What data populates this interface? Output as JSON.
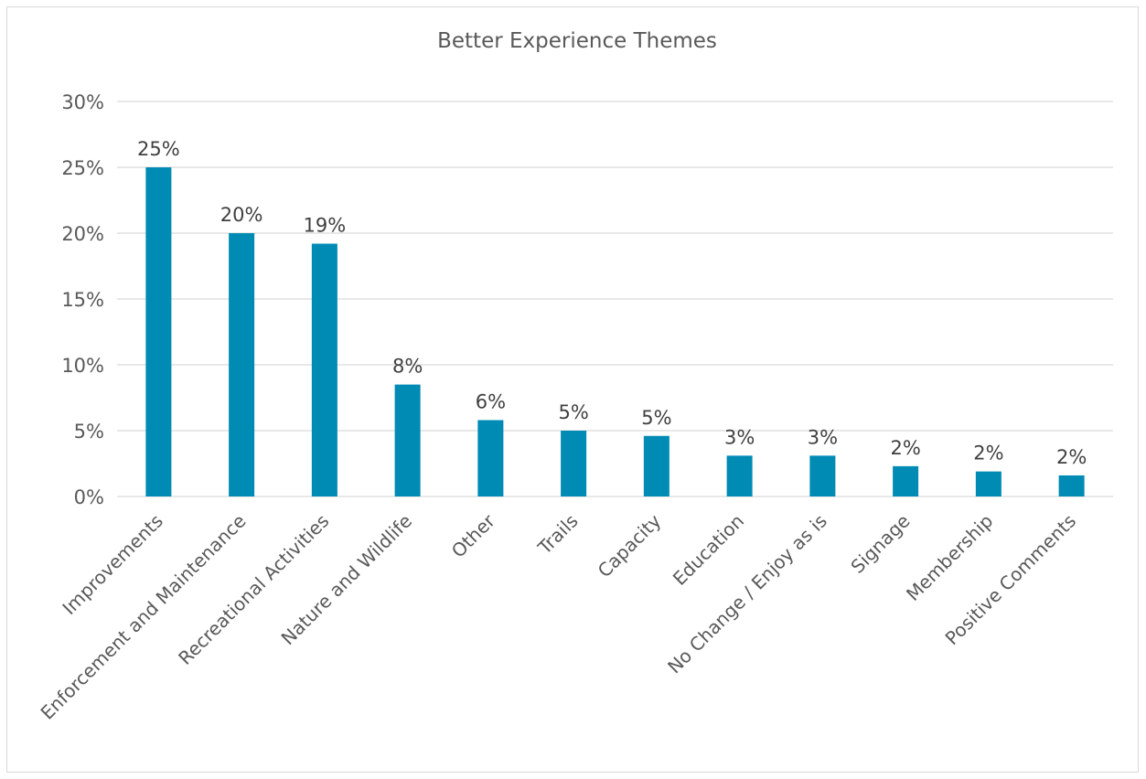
{
  "chart_data": {
    "type": "bar",
    "title": "Better Experience Themes",
    "categories": [
      "Improvements",
      "Enforcement and Maintenance",
      "Recreational Activities",
      "Nature and Wildlife",
      "Other",
      "Trails",
      "Capacity",
      "Education",
      "No Change / Enjoy as is",
      "Signage",
      "Membership",
      "Positive Comments"
    ],
    "values": [
      25,
      20,
      19.2,
      8.5,
      5.8,
      5.0,
      4.6,
      3.1,
      3.1,
      2.3,
      1.9,
      1.6
    ],
    "data_labels": [
      "25%",
      "20%",
      "19%",
      "8%",
      "6%",
      "5%",
      "5%",
      "3%",
      "3%",
      "2%",
      "2%",
      "2%"
    ],
    "y_ticks": [
      "0%",
      "5%",
      "10%",
      "15%",
      "20%",
      "25%",
      "30%"
    ],
    "xlabel": "",
    "ylabel": "",
    "ylim": [
      0,
      30
    ],
    "grid": true,
    "legend": "none",
    "bar_color": "#008bb5"
  }
}
